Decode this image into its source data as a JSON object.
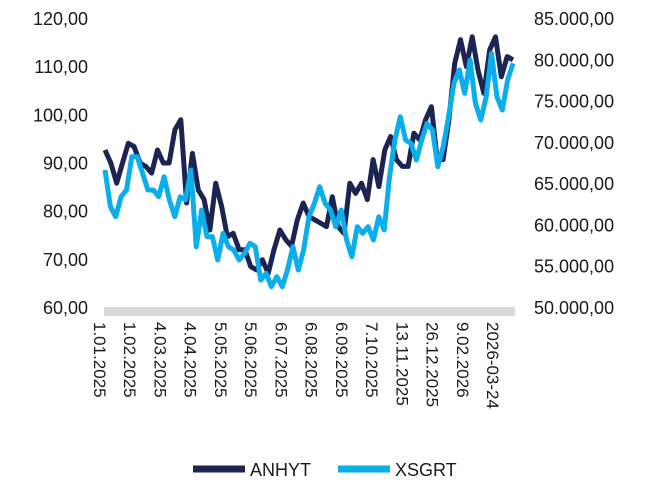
{
  "chart_data": {
    "type": "line",
    "title": "",
    "x_tick_labels": [
      "1.01.2025",
      "1.02.2025",
      "4.03.2025",
      "4.04.2025",
      "5.05.2025",
      "5.06.2025",
      "6.07.2025",
      "6.08.2025",
      "6.09.2025",
      "7.10.2025",
      "13.11.2025",
      "26.12.2025",
      "9.02.2026",
      "2026-03-24"
    ],
    "y_left": {
      "ylim": [
        60,
        120
      ],
      "ticks": [
        "60,00",
        "70,00",
        "80,00",
        "90,00",
        "100,00",
        "110,00",
        "120,00"
      ],
      "tick_values": [
        60,
        70,
        80,
        90,
        100,
        110,
        120
      ]
    },
    "y_right": {
      "ylim": [
        50000,
        85000
      ],
      "ticks": [
        "50.000,00",
        "55.000,00",
        "60.000,00",
        "65.000,00",
        "70.000,00",
        "75.000,00",
        "80.000,00",
        "85.000,00"
      ],
      "tick_values": [
        50000,
        55000,
        60000,
        65000,
        70000,
        75000,
        80000,
        85000
      ]
    },
    "grid": false,
    "legend_position": "bottom",
    "series": [
      {
        "name": "ANHYT",
        "axis": "left",
        "color": "#1c2452",
        "values": [
          92.8,
          90.1,
          85.9,
          90.1,
          94.2,
          93.5,
          90.1,
          89.4,
          88.0,
          92.8,
          90.1,
          90.1,
          97.0,
          99.1,
          81.8,
          92.1,
          84.5,
          82.5,
          76.2,
          85.9,
          81.1,
          74.8,
          75.5,
          72.1,
          72.1,
          68.6,
          67.9,
          70.0,
          67.2,
          72.1,
          76.2,
          74.2,
          72.8,
          78.3,
          81.8,
          79.0,
          78.3,
          77.6,
          76.9,
          83.1,
          76.9,
          75.5,
          85.9,
          83.8,
          85.9,
          82.5,
          90.8,
          85.2,
          92.8,
          95.6,
          90.8,
          89.4,
          89.4,
          96.3,
          94.9,
          99.1,
          101.8,
          90.8,
          90.8,
          99.1,
          110.8,
          115.7,
          110.1,
          116.3,
          109.4,
          104.6,
          113.6,
          116.3,
          108.0,
          112.2,
          111.5
        ]
      },
      {
        "name": "XSGRT",
        "axis": "right",
        "color": "#0aaeea",
        "values": [
          66712,
          62272,
          61061,
          63483,
          64290,
          68327,
          68327,
          66309,
          64290,
          64290,
          63483,
          65905,
          63080,
          61061,
          63483,
          63080,
          66712,
          57427,
          61868,
          58638,
          58638,
          55813,
          59042,
          57427,
          57023,
          55813,
          56620,
          57831,
          57427,
          53392,
          54199,
          52585,
          53796,
          52585,
          54603,
          57427,
          54603,
          57023,
          61061,
          62676,
          64694,
          62676,
          61868,
          59850,
          61868,
          58235,
          56216,
          59850,
          59042,
          59850,
          58235,
          61061,
          59446,
          65905,
          70344,
          73170,
          70344,
          69940,
          67924,
          70344,
          72362,
          71555,
          67117,
          69536,
          73170,
          77209,
          78823,
          75998,
          80035,
          74788,
          72766,
          75594,
          80842,
          75594,
          73979,
          77612,
          79631
        ]
      }
    ]
  }
}
